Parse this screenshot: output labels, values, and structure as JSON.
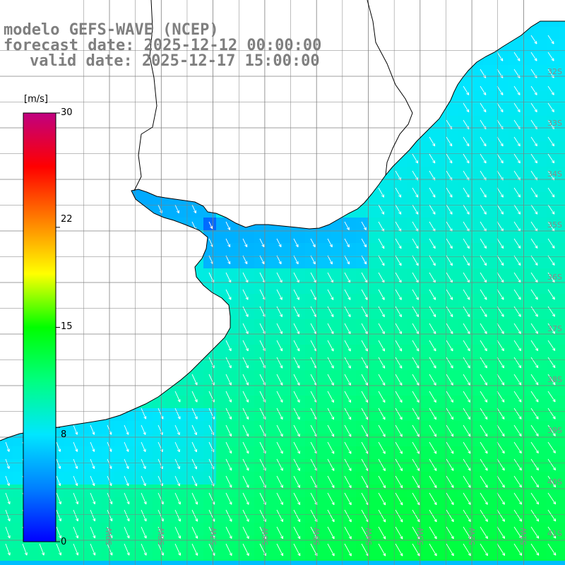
{
  "header": {
    "line1": "modelo GEFS-WAVE (NCEP)",
    "line2": "forecast date: 2025-12-12 00:00:00",
    "line3": "valid date: 2025-12-17 15:00:00"
  },
  "colorbar": {
    "unit": "[m/s]",
    "min": 0,
    "max": 30,
    "tick_labels": [
      "30",
      "22",
      "15",
      "8",
      "0"
    ],
    "tick_values": [
      30,
      22,
      15,
      8,
      0
    ],
    "colors": [
      "#0000ff",
      "#0080ff",
      "#00e6ff",
      "#00ff80",
      "#00ff00",
      "#ffff00",
      "#ff8000",
      "#ff0000",
      "#c00080"
    ]
  },
  "map": {
    "field": "wind speed",
    "land_color": "#ffffff",
    "coastline_color": "#000000",
    "grid_color": "#7f7f7f",
    "arrow_color": "#ffffff",
    "lat_labels": [
      "32S",
      "33S",
      "34S",
      "35S",
      "36S",
      "37S",
      "38S",
      "39S",
      "40S",
      "41S"
    ],
    "lat_values": [
      -32,
      -33,
      -34,
      -35,
      -36,
      -37,
      -38,
      -39,
      -40,
      -41
    ],
    "lon_labels": [
      "59W",
      "58W",
      "57W",
      "56W",
      "55W",
      "54W",
      "53W",
      "52W",
      "51W"
    ],
    "lon_values": [
      -59,
      -58,
      -57,
      -56,
      -55,
      -54,
      -53,
      -52,
      -51
    ]
  }
}
